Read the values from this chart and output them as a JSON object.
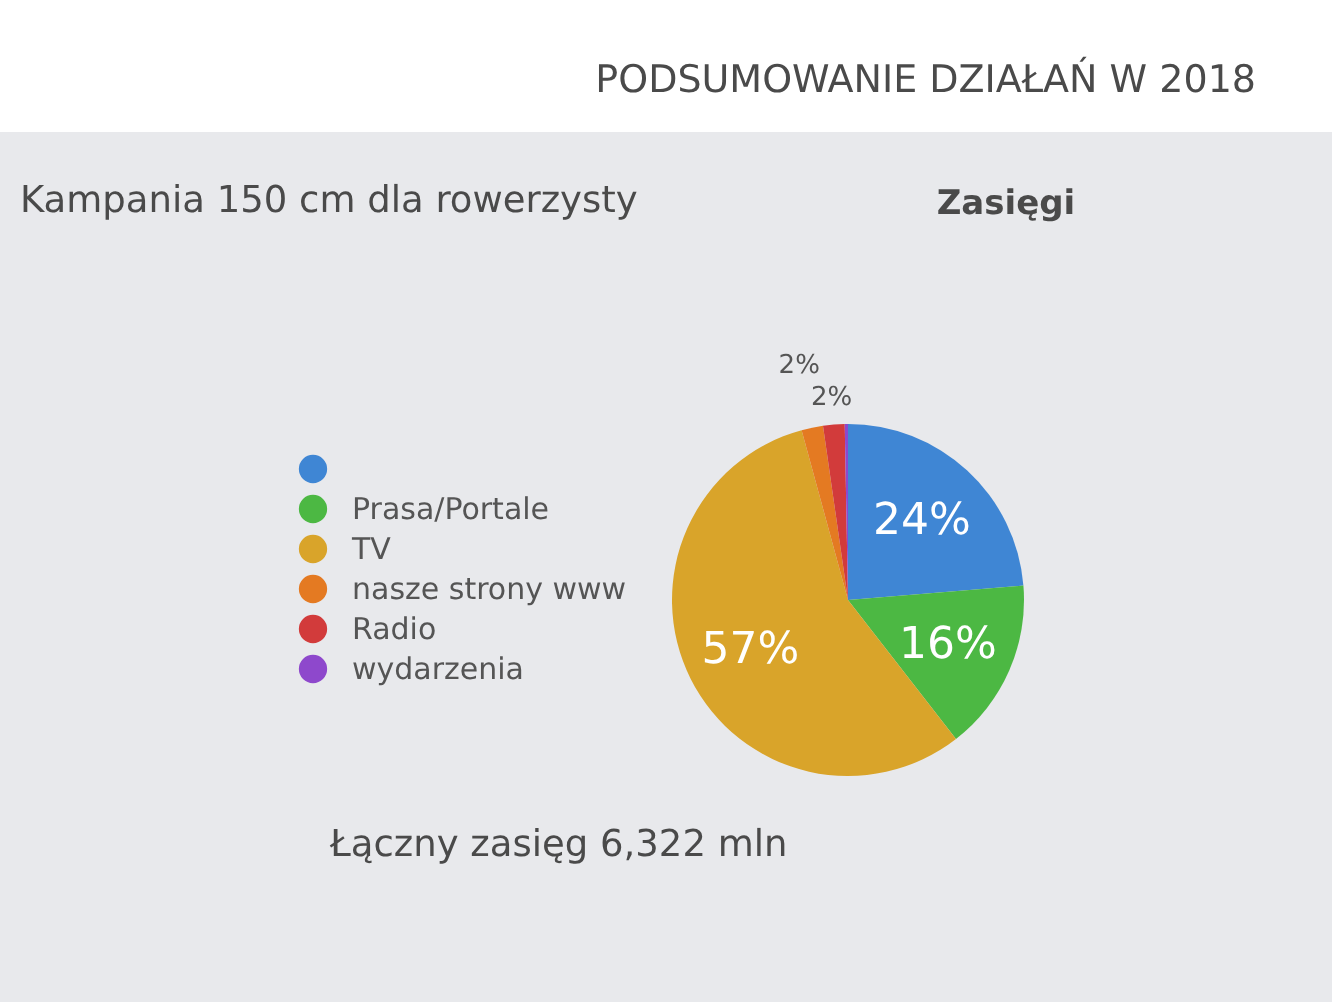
{
  "chart_data": {
    "type": "pie",
    "title": "Zasięgi",
    "subtitle": "Kampania 150 cm dla rowerzysty",
    "annotations": [
      "PODSUMOWANIE DZIAŁAŃ W 2018",
      "Łączny zasięg 6,322 mln"
    ],
    "categories": [
      null,
      "Prasa/Portale",
      "TV",
      "nasze strony www",
      "Radio",
      "wydarzenia"
    ],
    "values": [
      24,
      16,
      57,
      2,
      2,
      0.3
    ],
    "value_labels": [
      "24%",
      "16%",
      "57%",
      "2%",
      "2%",
      null
    ],
    "colors": [
      "#3f86d4",
      "#4cb843",
      "#d9a42a",
      "#e47a22",
      "#d23b3b",
      "#8e48cc"
    ],
    "legend": "left"
  }
}
